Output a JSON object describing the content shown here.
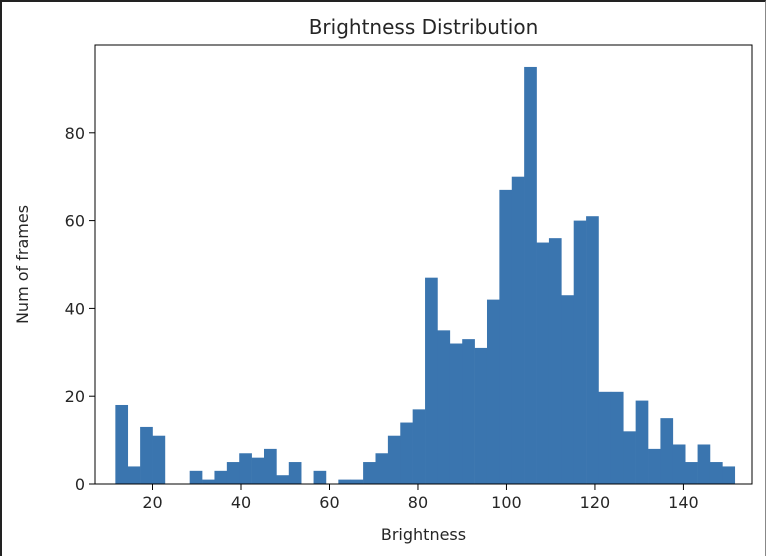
{
  "chart_data": {
    "type": "bar",
    "title": "Brightness Distribution",
    "xlabel": "Brightness",
    "ylabel": "Num of frames",
    "xlim": [
      7.0,
      155.5
    ],
    "ylim": [
      0,
      100
    ],
    "xticks": [
      20,
      40,
      60,
      80,
      100,
      120,
      140
    ],
    "yticks": [
      0,
      20,
      40,
      60,
      80
    ],
    "bin_start": 11.6,
    "bin_width": 2.8,
    "values": [
      18,
      4,
      13,
      11,
      0,
      0,
      3,
      1,
      3,
      5,
      7,
      6,
      8,
      2,
      5,
      0,
      3,
      0,
      1,
      1,
      5,
      7,
      11,
      14,
      17,
      47,
      35,
      32,
      33,
      31,
      42,
      67,
      70,
      95,
      55,
      56,
      43,
      60,
      61,
      21,
      21,
      12,
      19,
      8,
      15,
      9,
      5,
      9,
      5,
      4
    ],
    "bar_color": "#3a75af",
    "grid": false,
    "legend": "none"
  }
}
